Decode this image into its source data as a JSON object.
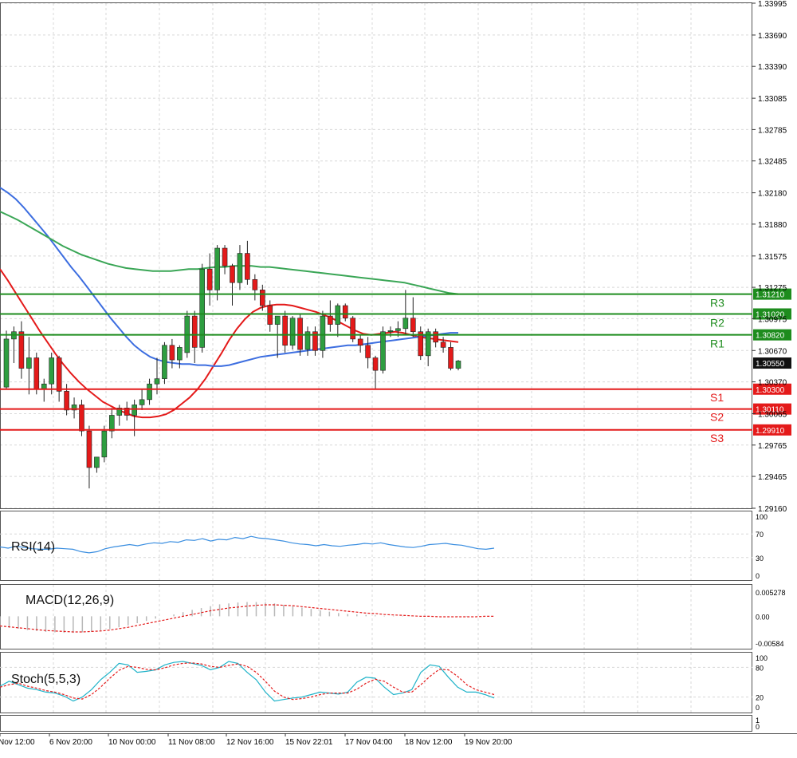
{
  "colors": {
    "bull": "#2e9e40",
    "bear": "#e41a1a",
    "ma_fast": "#e41a1a",
    "ma_mid": "#3d6ee0",
    "ma_slow": "#3aa656",
    "resistance": "#1e8c1e",
    "support": "#e41a1a",
    "rsi": "#3a8ee0",
    "macd_hist": "#b8b8b8",
    "macd_signal": "#e41a1a",
    "stoch_main": "#1fb3c9",
    "stoch_signal": "#e41a1a",
    "grid": "#d8d8d8"
  },
  "chart_data": [
    {
      "type": "candlestick",
      "price_axis": {
        "ylim": [
          1.2916,
          1.33995
        ],
        "ticks": [
          "1.33995",
          "1.33690",
          "1.33390",
          "1.33085",
          "1.32785",
          "1.32485",
          "1.32180",
          "1.31880",
          "1.31575",
          "1.31275",
          "1.30975",
          "1.30670",
          "1.30370",
          "1.30065",
          "1.29765",
          "1.29465",
          "1.29160"
        ]
      },
      "time_labels": [
        "Nov 12:00",
        "6 Nov 20:00",
        "10 Nov 00:00",
        "11 Nov 08:00",
        "12 Nov 16:00",
        "15 Nov 22:01",
        "17 Nov 04:00",
        "18 Nov 12:00",
        "19 Nov 20:00"
      ],
      "current_price": "1.30550",
      "levels": [
        {
          "name": "R3",
          "value": "1.31210",
          "kind": "resistance"
        },
        {
          "name": "R2",
          "value": "1.31020",
          "kind": "resistance"
        },
        {
          "name": "R1",
          "value": "1.30820",
          "kind": "resistance"
        },
        {
          "name": "S1",
          "value": "1.30300",
          "kind": "support"
        },
        {
          "name": "S2",
          "value": "1.30110",
          "kind": "support"
        },
        {
          "name": "S3",
          "value": "1.29910",
          "kind": "support"
        }
      ],
      "candles": [
        [
          1.3032,
          1.3086,
          1.303,
          1.3078
        ],
        [
          1.3078,
          1.309,
          1.3055,
          1.3085
        ],
        [
          1.3085,
          1.3095,
          1.304,
          1.305
        ],
        [
          1.305,
          1.308,
          1.3025,
          1.306
        ],
        [
          1.306,
          1.3065,
          1.3025,
          1.303
        ],
        [
          1.303,
          1.304,
          1.3018,
          1.3035
        ],
        [
          1.3035,
          1.3065,
          1.3025,
          1.306
        ],
        [
          1.306,
          1.3062,
          1.3018,
          1.3028
        ],
        [
          1.3028,
          1.3035,
          1.3005,
          1.301
        ],
        [
          1.301,
          1.3022,
          1.3002,
          1.3015
        ],
        [
          1.3015,
          1.302,
          1.2985,
          1.299
        ],
        [
          1.299,
          1.2995,
          1.2935,
          1.2955
        ],
        [
          1.2955,
          1.2965,
          1.295,
          1.2965
        ],
        [
          1.2965,
          1.2995,
          1.296,
          1.299
        ],
        [
          1.299,
          1.3012,
          1.2983,
          1.3005
        ],
        [
          1.3005,
          1.3015,
          1.2995,
          1.3012
        ],
        [
          1.3012,
          1.3018,
          1.3,
          1.3005
        ],
        [
          1.3005,
          1.302,
          1.2985,
          1.3015
        ],
        [
          1.3015,
          1.303,
          1.301,
          1.302
        ],
        [
          1.302,
          1.304,
          1.3015,
          1.3035
        ],
        [
          1.3035,
          1.306,
          1.3025,
          1.304
        ],
        [
          1.304,
          1.3075,
          1.3035,
          1.3072
        ],
        [
          1.3072,
          1.3078,
          1.305,
          1.3058
        ],
        [
          1.3058,
          1.3072,
          1.305,
          1.307
        ],
        [
          1.3065,
          1.3105,
          1.306,
          1.31
        ],
        [
          1.31,
          1.3105,
          1.3055,
          1.307
        ],
        [
          1.307,
          1.315,
          1.3065,
          1.3145
        ],
        [
          1.3145,
          1.316,
          1.311,
          1.3125
        ],
        [
          1.3125,
          1.3168,
          1.3115,
          1.3165
        ],
        [
          1.3165,
          1.3168,
          1.314,
          1.3148
        ],
        [
          1.3148,
          1.315,
          1.311,
          1.3132
        ],
        [
          1.3132,
          1.3168,
          1.3125,
          1.316
        ],
        [
          1.316,
          1.3172,
          1.313,
          1.3135
        ],
        [
          1.3135,
          1.314,
          1.3115,
          1.3125
        ],
        [
          1.3125,
          1.313,
          1.3105,
          1.311
        ],
        [
          1.311,
          1.3115,
          1.3085,
          1.3092
        ],
        [
          1.3092,
          1.31,
          1.306,
          1.31
        ],
        [
          1.31,
          1.3105,
          1.3065,
          1.3072
        ],
        [
          1.3072,
          1.31,
          1.3068,
          1.3098
        ],
        [
          1.3098,
          1.3102,
          1.3062,
          1.3068
        ],
        [
          1.3068,
          1.309,
          1.3062,
          1.3085
        ],
        [
          1.3085,
          1.309,
          1.3062,
          1.3067
        ],
        [
          1.3067,
          1.3105,
          1.306,
          1.31
        ],
        [
          1.31,
          1.3115,
          1.3085,
          1.3092
        ],
        [
          1.3092,
          1.3112,
          1.308,
          1.311
        ],
        [
          1.311,
          1.3112,
          1.3095,
          1.3098
        ],
        [
          1.3098,
          1.31,
          1.3075,
          1.3078
        ],
        [
          1.3078,
          1.3082,
          1.3065,
          1.3072
        ],
        [
          1.3072,
          1.308,
          1.305,
          1.306
        ],
        [
          1.306,
          1.3062,
          1.303,
          1.3048
        ],
        [
          1.3048,
          1.309,
          1.3045,
          1.3085
        ],
        [
          1.3085,
          1.309,
          1.308,
          1.3086
        ],
        [
          1.3086,
          1.3095,
          1.308,
          1.3088
        ],
        [
          1.3088,
          1.3125,
          1.3082,
          1.3098
        ],
        [
          1.3098,
          1.3118,
          1.308,
          1.3085
        ],
        [
          1.3085,
          1.309,
          1.3058,
          1.3062
        ],
        [
          1.3062,
          1.3088,
          1.3052,
          1.3085
        ],
        [
          1.3085,
          1.3088,
          1.307,
          1.3075
        ],
        [
          1.3075,
          1.308,
          1.3065,
          1.307
        ],
        [
          1.307,
          1.3075,
          1.3048,
          1.305
        ],
        [
          1.305,
          1.3058,
          1.3048,
          1.3057
        ]
      ],
      "moving_averages": [
        {
          "color_key": "ma_fast",
          "values": [
            1.3145,
            1.3134,
            1.3122,
            1.311,
            1.3098,
            1.3086,
            1.3075,
            1.3064,
            1.3054,
            1.3045,
            1.3037,
            1.303,
            1.3024,
            1.3018,
            1.3014,
            1.301,
            1.3007,
            1.3004,
            1.3003,
            1.3003,
            1.3004,
            1.3006,
            1.301,
            1.3016,
            1.3022,
            1.303,
            1.304,
            1.3052,
            1.3064,
            1.3077,
            1.3088,
            1.3097,
            1.3104,
            1.3108,
            1.311,
            1.3111,
            1.3111,
            1.311,
            1.3108,
            1.3106,
            1.3104,
            1.3101,
            1.3098,
            1.3094,
            1.309,
            1.3086,
            1.3083,
            1.3082,
            1.3083,
            1.3084,
            1.3085,
            1.3084,
            1.3082,
            1.308,
            1.3079,
            1.3078,
            1.3077,
            1.3076,
            1.3075
          ]
        },
        {
          "color_key": "ma_mid",
          "values": [
            1.3223,
            1.3218,
            1.3212,
            1.3204,
            1.3195,
            1.3186,
            1.3177,
            1.3167,
            1.3157,
            1.3147,
            1.3138,
            1.3128,
            1.3118,
            1.3108,
            1.3098,
            1.3089,
            1.308,
            1.3072,
            1.3066,
            1.3061,
            1.3058,
            1.3056,
            1.3055,
            1.3054,
            1.3054,
            1.3053,
            1.3053,
            1.3052,
            1.3052,
            1.3053,
            1.3055,
            1.3057,
            1.3059,
            1.3061,
            1.3062,
            1.3063,
            1.3064,
            1.3065,
            1.3066,
            1.3067,
            1.3068,
            1.3069,
            1.307,
            1.3071,
            1.3072,
            1.3072,
            1.3073,
            1.3074,
            1.3075,
            1.3076,
            1.3077,
            1.3078,
            1.3079,
            1.308,
            1.3081,
            1.3082,
            1.3083,
            1.3084,
            1.3084
          ]
        },
        {
          "color_key": "ma_slow",
          "values": [
            1.32,
            1.3196,
            1.3192,
            1.3187,
            1.3182,
            1.3177,
            1.3172,
            1.3167,
            1.3163,
            1.3159,
            1.3156,
            1.3153,
            1.315,
            1.3148,
            1.3146,
            1.3145,
            1.3144,
            1.3143,
            1.3143,
            1.3143,
            1.3144,
            1.3145,
            1.3145,
            1.3146,
            1.3147,
            1.3147,
            1.3148,
            1.3148,
            1.3148,
            1.3147,
            1.3147,
            1.3146,
            1.3145,
            1.3144,
            1.3143,
            1.3142,
            1.3141,
            1.314,
            1.3139,
            1.3138,
            1.3137,
            1.3136,
            1.3135,
            1.3134,
            1.3133,
            1.3132,
            1.313,
            1.3128,
            1.3126,
            1.3124,
            1.3122,
            1.3121
          ]
        }
      ]
    },
    {
      "type": "line",
      "title": "RSI(14)",
      "ylim": [
        0,
        100
      ],
      "ticks": [
        "100",
        "70",
        "30",
        "0"
      ],
      "values": [
        48,
        46,
        49,
        47,
        45,
        44,
        44,
        46,
        45,
        44,
        40,
        38,
        40,
        45,
        48,
        50,
        52,
        50,
        53,
        55,
        54,
        57,
        56,
        60,
        59,
        62,
        58,
        61,
        60,
        64,
        62,
        66,
        63,
        62,
        60,
        58,
        55,
        53,
        52,
        50,
        52,
        50,
        49,
        51,
        52,
        54,
        53,
        55,
        52,
        50,
        48,
        47,
        49,
        52,
        53,
        54,
        52,
        51,
        48,
        45,
        44,
        46
      ]
    },
    {
      "type": "bar",
      "title": "MACD(12,26,9)",
      "ylim": [
        -0.00584,
        0.005278
      ],
      "ticks": [
        "0.005278",
        "0.00",
        "-0.00584"
      ],
      "values": [
        -0.0023,
        -0.0025,
        -0.0027,
        -0.003,
        -0.0032,
        -0.0034,
        -0.0035,
        -0.0036,
        -0.0036,
        -0.0035,
        -0.0034,
        -0.0031,
        -0.0028,
        -0.0024,
        -0.002,
        -0.0015,
        -0.001,
        -0.0005,
        0.0,
        0.0004,
        0.0009,
        0.0014,
        0.0018,
        0.0022,
        0.0026,
        0.0028,
        0.003,
        0.0031,
        0.0031,
        0.003,
        0.0028,
        0.0025,
        0.0022,
        0.0019,
        0.0016,
        0.0013,
        0.001,
        0.0007,
        0.0005,
        0.0004,
        0.0003,
        0.0002,
        0.0001,
        0.0001,
        0.0001,
        0.0001,
        0.0,
        0.0,
        0.0,
        -0.0001,
        -0.0001,
        -0.0001,
        0.0,
        0.0,
        0.0
      ],
      "signal": [
        -0.0021,
        -0.0023,
        -0.0025,
        -0.0027,
        -0.0029,
        -0.0031,
        -0.0032,
        -0.0033,
        -0.0034,
        -0.0034,
        -0.0033,
        -0.0032,
        -0.003,
        -0.0027,
        -0.0024,
        -0.002,
        -0.0016,
        -0.0012,
        -0.0008,
        -0.0004,
        0.0,
        0.0004,
        0.0008,
        0.0012,
        0.0015,
        0.0018,
        0.002,
        0.0022,
        0.0024,
        0.0025,
        0.0025,
        0.0024,
        0.0023,
        0.0021,
        0.0019,
        0.0017,
        0.0015,
        0.0013,
        0.0011,
        0.0009,
        0.0007,
        0.0006,
        0.0004,
        0.0003,
        0.0002,
        0.0001,
        0.0,
        0.0,
        -0.0001,
        -0.0001,
        -0.0001,
        -0.0001,
        -0.0001,
        0.0,
        0.0
      ]
    },
    {
      "type": "line",
      "title": "Stoch(5,5,3)",
      "ylim": [
        0,
        100
      ],
      "ticks": [
        "100",
        "80",
        "20",
        "0"
      ],
      "values": [
        42,
        52,
        45,
        38,
        35,
        30,
        28,
        22,
        12,
        20,
        35,
        55,
        70,
        88,
        85,
        70,
        72,
        75,
        85,
        90,
        92,
        88,
        84,
        75,
        80,
        92,
        88,
        70,
        55,
        30,
        12,
        15,
        18,
        20,
        25,
        30,
        28,
        26,
        30,
        50,
        60,
        58,
        40,
        25,
        28,
        35,
        70,
        85,
        82,
        60,
        40,
        30,
        30,
        25,
        18
      ],
      "signal": [
        40,
        45,
        48,
        42,
        38,
        33,
        30,
        25,
        18,
        16,
        25,
        40,
        58,
        74,
        82,
        80,
        76,
        75,
        79,
        85,
        88,
        89,
        87,
        82,
        80,
        84,
        87,
        82,
        70,
        52,
        32,
        20,
        15,
        17,
        20,
        25,
        28,
        28,
        28,
        36,
        48,
        56,
        52,
        40,
        30,
        30,
        45,
        62,
        76,
        75,
        62,
        45,
        35,
        30,
        25
      ]
    }
  ]
}
